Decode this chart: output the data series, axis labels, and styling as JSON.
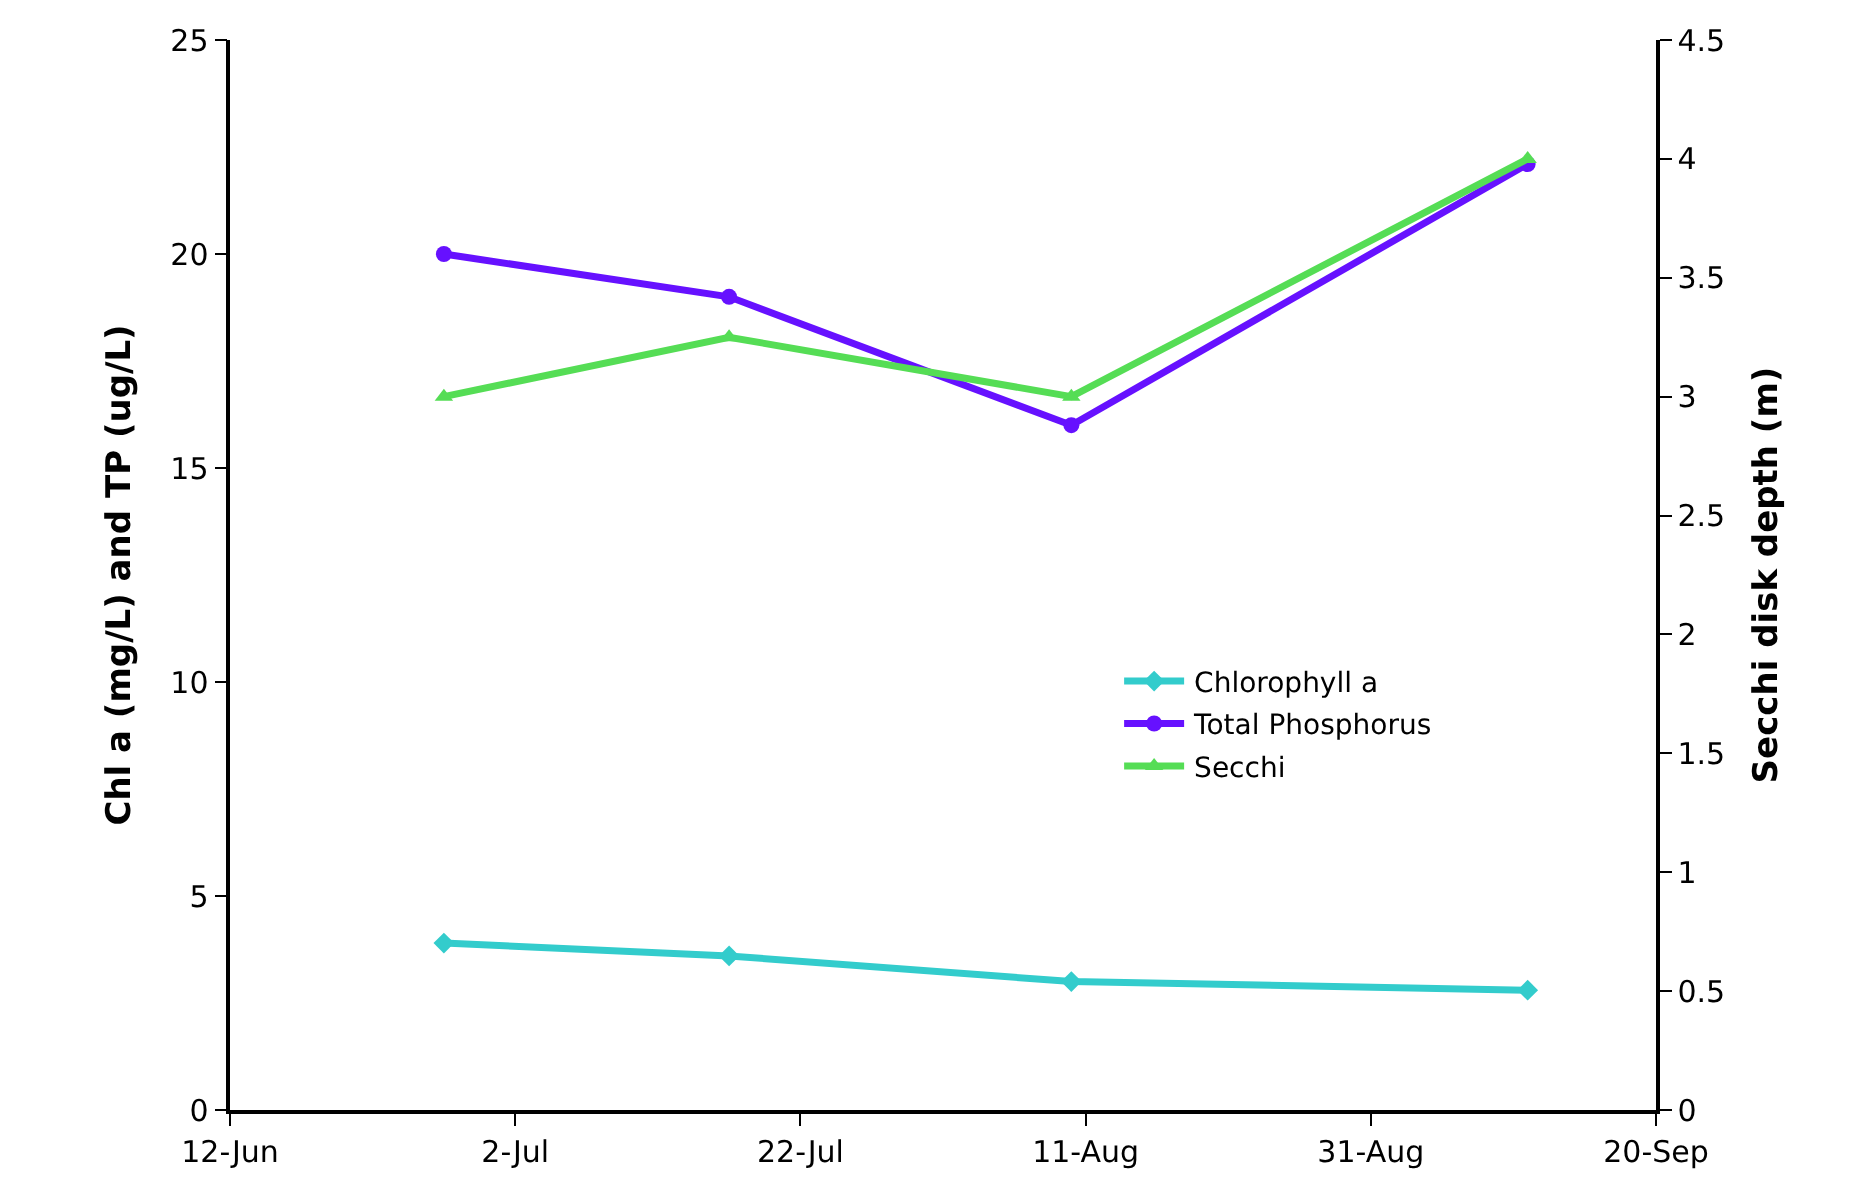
{
  "chart_data": {
    "type": "line",
    "ylabel": "Chl a (mg/L) and TP (ug/L)",
    "y2label": "Secchi disk depth (m)",
    "x": [
      "--06-27",
      "--07-17",
      "--08-10",
      "--09-11"
    ],
    "series": [
      {
        "name": "Chlorophyll a",
        "color": "#33cccc",
        "marker": "diamond",
        "values": [
          3.9,
          3.6,
          3.0,
          2.8
        ]
      },
      {
        "name": "Total Phosphorus",
        "color": "#6611ff",
        "marker": "circle",
        "values": [
          20.0,
          19.0,
          16.0,
          22.1
        ]
      },
      {
        "name": "Secchi",
        "color": "#55dd55",
        "marker": "triangle",
        "axis": "y2",
        "values": [
          3.0,
          3.25,
          3.0,
          4.0
        ]
      }
    ],
    "xlim": [
      "--06-12",
      "--09-20"
    ],
    "xticks": [
      {
        "value": "--06-12",
        "label": "12-Jun"
      },
      {
        "value": "--07-02",
        "label": "2-Jul"
      },
      {
        "value": "--07-22",
        "label": "22-Jul"
      },
      {
        "value": "--08-11",
        "label": "11-Aug"
      },
      {
        "value": "--08-31",
        "label": "31-Aug"
      },
      {
        "value": "--09-20",
        "label": "20-Sep"
      }
    ],
    "ylim": [
      0,
      25
    ],
    "yticks": [
      0,
      5,
      10,
      15,
      20,
      25
    ],
    "y2lim": [
      0,
      4.5
    ],
    "y2ticks": [
      0,
      0.5,
      1,
      1.5,
      2,
      2.5,
      3,
      3.5,
      4,
      4.5
    ],
    "legend": "bottom right",
    "line_style": "solid"
  }
}
